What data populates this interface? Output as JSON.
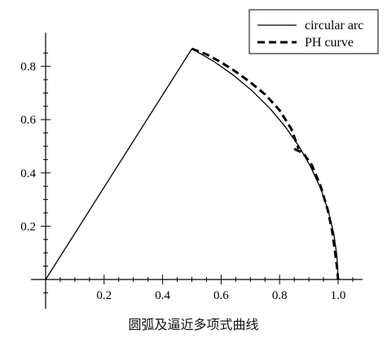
{
  "chart_data": {
    "type": "line",
    "xlim": [
      -0.05,
      1.1
    ],
    "ylim": [
      -0.05,
      0.92
    ],
    "x_ticks": [
      0.2,
      0.4,
      0.6,
      0.8,
      1.0
    ],
    "y_ticks": [
      0.2,
      0.4,
      0.6,
      0.8
    ],
    "x_tick_labels": [
      "0.2",
      "0.4",
      "0.6",
      "0.8",
      "1.0"
    ],
    "y_tick_labels": [
      "0.2",
      "0.4",
      "0.6",
      "0.8"
    ],
    "legend": {
      "placement": "top-right",
      "entries": [
        "circular arc",
        "PH curve"
      ]
    },
    "caption": "圆弧及逼近多项式曲线",
    "series": [
      {
        "name": "circular arc",
        "style": "solid",
        "x": [
          0.0,
          0.5,
          0.574,
          0.643,
          0.707,
          0.766,
          0.819,
          0.866,
          0.906,
          0.94,
          0.966,
          0.985,
          0.996,
          1.0
        ],
        "y": [
          0.0,
          0.866,
          0.819,
          0.766,
          0.707,
          0.643,
          0.574,
          0.5,
          0.423,
          0.342,
          0.259,
          0.174,
          0.087,
          0.0
        ]
      },
      {
        "name": "PH curve",
        "style": "dashed",
        "x": [
          0.5,
          0.55,
          0.6,
          0.65,
          0.7,
          0.75,
          0.8,
          0.84,
          0.865
        ],
        "y": [
          0.866,
          0.845,
          0.815,
          0.78,
          0.74,
          0.695,
          0.635,
          0.565,
          0.49
        ]
      },
      {
        "name": "PH curve",
        "style": "dashed",
        "x": [
          0.85,
          0.88,
          0.91,
          0.94,
          0.965,
          0.98,
          0.99,
          0.997,
          1.0
        ],
        "y": [
          0.49,
          0.475,
          0.43,
          0.35,
          0.26,
          0.18,
          0.1,
          0.04,
          0.0
        ]
      }
    ]
  }
}
